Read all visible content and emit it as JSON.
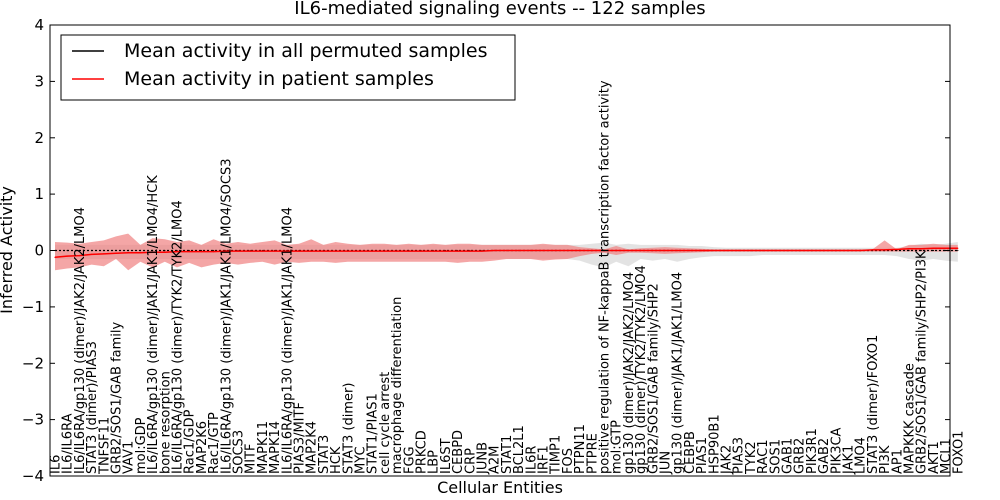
{
  "chart_data": {
    "type": "line",
    "title": "IL6-mediated signaling events -- 122 samples",
    "xlabel": "Cellular Entities",
    "ylabel": "Inferred Activity",
    "ylim": [
      -4,
      4
    ],
    "yticks": [
      -4,
      -3,
      -2,
      -1,
      0,
      1,
      2,
      3,
      4
    ],
    "grid": false,
    "legend_position": "top-left",
    "colors": {
      "permuted_line": "#000000",
      "patient_line": "#ff0000",
      "patient_band": "#f08080",
      "permuted_band": "#c0c0c0"
    },
    "categories": [
      "IL6",
      "IL6/IL6RA",
      "IL6/IL6RA/gp130 (dimer)/JAK2/JAK2/LMO4",
      "STAT3 (dimer)/PIAS3",
      "TNFSF11",
      "GRB2/SOS1/GAB family",
      "VAV1",
      "mol:GDP",
      "IL6/IL6RA/gp130 (dimer)/JAK1/JAK1/LMO4/HCK",
      "bone resorption",
      "IL6/IL6RA/gp130 (dimer)/TYK2/TYK2/LMO4",
      "Rac1/GDP",
      "MAP2K6",
      "Rac1/GTP",
      "IL6/IL6RA/gp130 (dimer)/JAK1/JAK1/LMO4/SOCS3",
      "SOCS3",
      "MITF",
      "MAPK11",
      "MAPK14",
      "IL6/IL6RA/gp130 (dimer)/JAK1/JAK1/LMO4",
      "PIAS3/MITF",
      "MAP2K4",
      "STAT3",
      "HCK",
      "STAT3 (dimer)",
      "MYC",
      "STAT1/PIAS1",
      "cell cycle arrest",
      "macrophage differentiation",
      "FGG",
      "PRKCD",
      "LBP",
      "IL6ST",
      "CEBPD",
      "CRP",
      "JUNB",
      "A2M",
      "STAT1",
      "BCL2L1",
      "IL6R",
      "IRF1",
      "TIMP1",
      "FOS",
      "PTPN11",
      "PTPRE",
      "positive regulation of NF-kappaB transcription factor activity",
      "mol:GTP",
      "gp130 (dimer)/JAK2/JAK2/LMO4",
      "gp130 (dimer)/TYK2/TYK2/LMO4",
      "GRB2/SOS1/GAB family/SHP2",
      "JUN",
      "gp130 (dimer)/JAK1/JAK1/LMO4",
      "CEBPB",
      "PIAS1",
      "HSP90B1",
      "JAK2",
      "PIAS3",
      "TYK2",
      "RAC1",
      "SOS1",
      "GAB1",
      "GRB2",
      "PIK3R1",
      "GAB2",
      "PIK3CA",
      "JAK1",
      "LMO4",
      "STAT3 (dimer)/FOXO1",
      "PI3K",
      "AP1",
      "MAPKKK cascade",
      "GRB2/SOS1/GAB family/SHP2/PI3K",
      "AKT1",
      "MCL1",
      "FOXO1"
    ],
    "series": [
      {
        "name": "Mean activity in all permuted samples",
        "values": [
          0,
          0,
          0,
          0,
          0,
          0,
          0,
          0,
          0,
          0,
          0,
          0,
          0,
          0,
          0,
          0,
          0,
          0,
          0,
          0,
          0,
          0,
          0,
          0,
          0,
          0,
          0,
          0,
          0,
          0,
          0,
          0,
          0,
          0,
          0,
          0,
          0,
          0,
          0,
          0,
          0,
          0,
          0,
          0,
          0,
          0,
          0,
          0,
          0,
          0,
          0,
          0,
          0,
          0,
          0,
          0,
          0,
          0,
          0,
          0,
          0,
          0,
          0,
          0,
          0,
          0,
          0,
          0,
          0,
          0,
          0,
          0,
          0,
          0,
          0
        ]
      },
      {
        "name": "Mean activity in patient samples",
        "values": [
          -0.12,
          -0.1,
          -0.09,
          -0.07,
          -0.06,
          -0.05,
          -0.04,
          -0.04,
          -0.03,
          -0.03,
          -0.02,
          -0.02,
          -0.02,
          -0.02,
          -0.01,
          -0.01,
          -0.01,
          -0.01,
          -0.01,
          -0.01,
          -0.01,
          -0.01,
          -0.01,
          -0.01,
          -0.01,
          -0.01,
          -0.01,
          -0.01,
          -0.01,
          -0.01,
          -0.01,
          -0.01,
          -0.01,
          -0.01,
          -0.01,
          -0.01,
          0,
          0,
          0,
          0,
          0,
          0,
          0,
          0,
          0,
          0,
          0,
          0,
          0,
          0,
          0,
          0,
          0,
          0,
          0,
          0,
          0,
          0,
          0,
          0,
          0,
          0,
          0,
          0,
          0,
          0,
          0,
          0.01,
          0.01,
          0.02,
          0.03,
          0.03,
          0.04,
          0.04,
          0.04
        ]
      }
    ],
    "bands": [
      {
        "name": "patient-range",
        "upper": [
          0.15,
          0.14,
          0.12,
          0.15,
          0.18,
          0.25,
          0.3,
          0.1,
          0.22,
          0.2,
          0.15,
          0.18,
          0.1,
          0.2,
          0.12,
          0.15,
          0.12,
          0.15,
          0.18,
          0.1,
          0.12,
          0.2,
          0.1,
          0.15,
          0.12,
          0.1,
          0.12,
          0.12,
          0.1,
          0.12,
          0.1,
          0.12,
          0.1,
          0.12,
          0.12,
          0.1,
          0.1,
          0.1,
          0.1,
          0.1,
          0.12,
          0.1,
          0.1,
          0.06,
          0.04,
          0.02,
          0.08,
          0.02,
          0.04,
          0.05,
          0.06,
          0.05,
          0.04,
          0.03,
          0.02,
          0.02,
          0.02,
          0.02,
          0.02,
          0.02,
          0.02,
          0.02,
          0.02,
          0.02,
          0.02,
          0.02,
          0.02,
          0.02,
          0.18,
          0.02,
          0.1,
          0.1,
          0.12,
          0.1,
          0.1
        ],
        "lower": [
          -0.35,
          -0.32,
          -0.3,
          -0.25,
          -0.28,
          -0.15,
          -0.35,
          -0.2,
          -0.3,
          -0.2,
          -0.3,
          -0.22,
          -0.3,
          -0.25,
          -0.22,
          -0.25,
          -0.22,
          -0.2,
          -0.25,
          -0.2,
          -0.22,
          -0.2,
          -0.2,
          -0.22,
          -0.2,
          -0.2,
          -0.2,
          -0.2,
          -0.2,
          -0.2,
          -0.2,
          -0.2,
          -0.2,
          -0.22,
          -0.2,
          -0.2,
          -0.18,
          -0.15,
          -0.15,
          -0.15,
          -0.18,
          -0.16,
          -0.15,
          -0.1,
          -0.06,
          -0.04,
          -0.08,
          -0.04,
          -0.04,
          -0.05,
          -0.06,
          -0.05,
          -0.04,
          -0.03,
          -0.02,
          -0.02,
          -0.02,
          -0.02,
          -0.02,
          -0.02,
          -0.02,
          -0.02,
          -0.02,
          -0.02,
          -0.02,
          -0.02,
          -0.02,
          -0.02,
          -0.02,
          -0.02,
          -0.02,
          -0.02,
          -0.02,
          -0.02,
          -0.02
        ]
      },
      {
        "name": "permuted-range",
        "upper": [
          0.1,
          0.1,
          0.1,
          0.1,
          0.1,
          0.1,
          0.1,
          0.1,
          0.1,
          0.1,
          0.1,
          0.1,
          0.1,
          0.1,
          0.1,
          0.1,
          0.1,
          0.1,
          0.1,
          0.1,
          0.1,
          0.1,
          0.1,
          0.1,
          0.1,
          0.1,
          0.1,
          0.1,
          0.1,
          0.1,
          0.1,
          0.1,
          0.1,
          0.1,
          0.1,
          0.1,
          0.1,
          0.1,
          0.1,
          0.1,
          0.1,
          0.1,
          0.1,
          0.1,
          0.12,
          0.14,
          0.1,
          0.12,
          0.1,
          0.1,
          0.1,
          0.1,
          0.08,
          0.08,
          0.06,
          0.05,
          0.05,
          0.05,
          0.05,
          0.05,
          0.05,
          0.05,
          0.05,
          0.05,
          0.05,
          0.05,
          0.05,
          0.05,
          0.05,
          0.05,
          0.08,
          0.12,
          0.1,
          0.12,
          0.15
        ],
        "lower": [
          -0.15,
          -0.15,
          -0.15,
          -0.15,
          -0.15,
          -0.15,
          -0.15,
          -0.15,
          -0.15,
          -0.15,
          -0.15,
          -0.15,
          -0.15,
          -0.15,
          -0.15,
          -0.15,
          -0.15,
          -0.15,
          -0.15,
          -0.15,
          -0.15,
          -0.15,
          -0.15,
          -0.15,
          -0.15,
          -0.15,
          -0.15,
          -0.15,
          -0.15,
          -0.15,
          -0.15,
          -0.15,
          -0.15,
          -0.15,
          -0.15,
          -0.15,
          -0.15,
          -0.15,
          -0.15,
          -0.15,
          -0.15,
          -0.15,
          -0.15,
          -0.18,
          -0.25,
          -0.3,
          -0.2,
          -0.28,
          -0.15,
          -0.18,
          -0.15,
          -0.2,
          -0.15,
          -0.12,
          -0.1,
          -0.1,
          -0.1,
          -0.1,
          -0.08,
          -0.08,
          -0.08,
          -0.08,
          -0.08,
          -0.08,
          -0.08,
          -0.08,
          -0.08,
          -0.08,
          -0.08,
          -0.1,
          -0.15,
          -0.18,
          -0.15,
          -0.18,
          -0.2
        ]
      }
    ]
  }
}
